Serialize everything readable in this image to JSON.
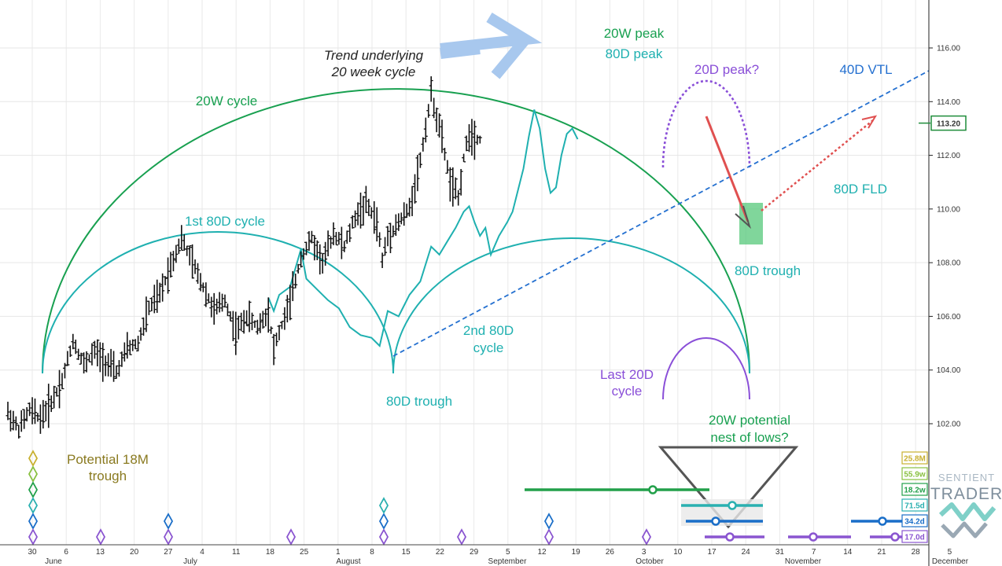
{
  "chart_data": {
    "type": "bar",
    "instrument_type": "OHLC price bars (daily)",
    "y_axis": {
      "ylim": [
        100.6,
        117.8
      ],
      "ticks": [
        "116.00",
        "114.00",
        "112.00",
        "110.00",
        "108.00",
        "106.00",
        "104.00",
        "102.00"
      ],
      "tick_values": [
        116,
        114,
        112,
        110,
        108,
        106,
        104,
        102
      ],
      "last_price_label": "113.20",
      "last_price_value": 113.2
    },
    "x_axis": {
      "day_ticks": [
        "30",
        "6",
        "13",
        "20",
        "27",
        "4",
        "11",
        "18",
        "25",
        "1",
        "8",
        "15",
        "22",
        "29",
        "5",
        "12",
        "19",
        "26",
        "3",
        "10",
        "17",
        "24",
        "31",
        "7",
        "14",
        "21",
        "28",
        "5"
      ],
      "months": [
        "June",
        "July",
        "August",
        "September",
        "October",
        "November",
        "December"
      ]
    },
    "price_path_keypoints": [
      [
        0,
        102.4
      ],
      [
        4,
        101.8
      ],
      [
        8,
        102.5
      ],
      [
        12,
        102.2
      ],
      [
        16,
        102.8
      ],
      [
        20,
        103.6
      ],
      [
        24,
        105.1
      ],
      [
        28,
        104.2
      ],
      [
        32,
        104.7
      ],
      [
        36,
        104.3
      ],
      [
        40,
        103.9
      ],
      [
        44,
        104.8
      ],
      [
        48,
        105.0
      ],
      [
        52,
        106.3
      ],
      [
        56,
        106.8
      ],
      [
        60,
        107.9
      ],
      [
        64,
        108.9
      ],
      [
        68,
        108.0
      ],
      [
        72,
        107.1
      ],
      [
        76,
        106.2
      ],
      [
        80,
        106.6
      ],
      [
        84,
        105.4
      ],
      [
        88,
        106.0
      ],
      [
        92,
        105.6
      ],
      [
        96,
        106.2
      ],
      [
        98,
        104.8
      ],
      [
        100,
        105.4
      ],
      [
        104,
        106.5
      ],
      [
        108,
        108.2
      ],
      [
        112,
        108.9
      ],
      [
        116,
        108.0
      ],
      [
        120,
        109.1
      ],
      [
        124,
        108.6
      ],
      [
        128,
        109.7
      ],
      [
        132,
        110.2
      ],
      [
        136,
        109.5
      ],
      [
        138,
        108.1
      ],
      [
        140,
        109.0
      ],
      [
        144,
        109.5
      ],
      [
        148,
        110.0
      ],
      [
        152,
        111.8
      ],
      [
        156,
        114.3
      ],
      [
        160,
        112.6
      ],
      [
        163,
        111.0
      ],
      [
        166,
        110.4
      ],
      [
        168,
        111.9
      ],
      [
        170,
        112.8
      ],
      [
        174,
        112.6
      ]
    ],
    "fld_series_keypoints": [
      [
        96,
        106.7
      ],
      [
        98,
        106.2
      ],
      [
        100,
        106.8
      ],
      [
        104,
        107.1
      ],
      [
        108,
        108.5
      ],
      [
        110,
        107.4
      ],
      [
        114,
        107.0
      ],
      [
        118,
        106.6
      ],
      [
        122,
        106.3
      ],
      [
        126,
        105.6
      ],
      [
        130,
        105.3
      ],
      [
        134,
        105.2
      ],
      [
        137,
        104.9
      ],
      [
        140,
        106.2
      ],
      [
        144,
        106.0
      ],
      [
        148,
        106.8
      ],
      [
        152,
        107.3
      ],
      [
        156,
        108.6
      ],
      [
        159,
        108.3
      ],
      [
        162,
        108.8
      ],
      [
        165,
        109.3
      ],
      [
        168,
        109.9
      ],
      [
        170,
        110.1
      ],
      [
        172,
        109.5
      ],
      [
        174,
        109.0
      ],
      [
        176,
        109.3
      ],
      [
        178,
        108.3
      ],
      [
        181,
        109.0
      ],
      [
        184,
        109.5
      ],
      [
        186,
        109.9
      ],
      [
        190,
        111.5
      ],
      [
        192,
        112.7
      ],
      [
        194,
        113.7
      ],
      [
        196,
        113.0
      ],
      [
        198,
        111.5
      ],
      [
        200,
        110.6
      ],
      [
        202,
        110.8
      ],
      [
        204,
        112.0
      ],
      [
        206,
        112.8
      ],
      [
        208,
        113.0
      ],
      [
        210,
        112.6
      ]
    ],
    "annotations": {
      "trend_text": [
        "Trend underlying",
        "20 week cycle"
      ],
      "peak_20w": "20W peak",
      "peak_80d": "80D peak",
      "peak_20d": "20D peak?",
      "vtl_40d": "40D VTL",
      "cycle_20w": "20W cycle",
      "cycle_80d_first": "1st 80D cycle",
      "cycle_80d_second": [
        "2nd 80D",
        "cycle"
      ],
      "trough_80d_left": "80D trough",
      "trough_80d_right": "80D trough",
      "fld_80d": "80D FLD",
      "last_20d": [
        "Last 20D",
        "cycle"
      ],
      "trough_18m": [
        "Potential 18M",
        "trough"
      ],
      "nest_20w": [
        "20W potential",
        "nest of lows?"
      ]
    },
    "cycle_badges": [
      {
        "label": "25.8M",
        "color": "#c8b030"
      },
      {
        "label": "55.9w",
        "color": "#88c040"
      },
      {
        "label": "18.2w",
        "color": "#22a04a"
      },
      {
        "label": "71.5d",
        "color": "#2ab0b0"
      },
      {
        "label": "34.2d",
        "color": "#1a6ec8"
      },
      {
        "label": "17.0d",
        "color": "#8a55d0"
      }
    ],
    "colors": {
      "price_bars": "#111111",
      "cycle_20w": "#18a050",
      "cycle_80d": "#1fb0b0",
      "cycle_20d": "#8a4fd8",
      "vtl": "#2470d0",
      "projection": "#e05050",
      "trend_arrow": "#a8c8ee",
      "trough_box": "#55c87a",
      "trough_18m_text": "#8a7a20"
    }
  },
  "branding": {
    "line1": "SENTIENT",
    "line2": "TRADER"
  }
}
